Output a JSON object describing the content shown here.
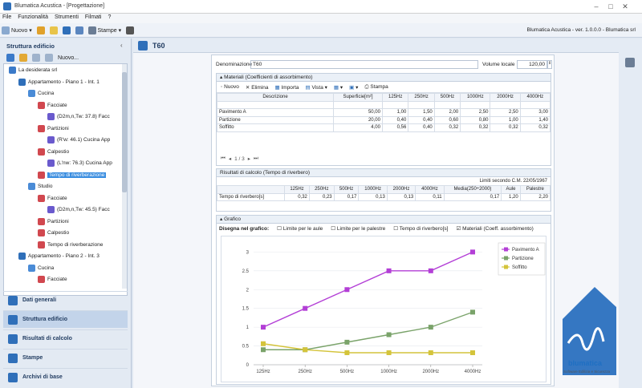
{
  "window": {
    "title": "Blumatica Acustica - [Progettazione]",
    "min": "–",
    "max": "□",
    "close": "✕"
  },
  "menu": [
    "File",
    "Funzionalità",
    "Strumenti",
    "Filmati",
    "?"
  ],
  "toolbar": {
    "new": "Nuovo",
    "print": "Stampe",
    "version": "Blumatica Acustica - ver. 1.0.0.0 - Blumatica srl"
  },
  "left": {
    "title": "Struttura edificio",
    "new_btn": "Nuovo...",
    "tree": [
      {
        "label": "La desiderata srl",
        "depth": 0
      },
      {
        "label": "Appartamento - Piano 1 - Int. 1",
        "depth": 1
      },
      {
        "label": "Cucina",
        "depth": 2
      },
      {
        "label": "Facciate",
        "depth": 3
      },
      {
        "label": "(D2m,n,Tw: 37.8) Facc",
        "depth": 4
      },
      {
        "label": "Partizioni",
        "depth": 3
      },
      {
        "label": "(R'w: 46.1) Cucina App",
        "depth": 4
      },
      {
        "label": "Calpestio",
        "depth": 3
      },
      {
        "label": "(L'nw: 76.3) Cucina App",
        "depth": 4
      },
      {
        "label": "Tempo di riverberazione",
        "depth": 3
      },
      {
        "label": "Studio",
        "depth": 2
      },
      {
        "label": "Facciate",
        "depth": 3
      },
      {
        "label": "(D2m,n,Tw: 45.5) Facc",
        "depth": 4
      },
      {
        "label": "Partizioni",
        "depth": 3
      },
      {
        "label": "Calpestio",
        "depth": 3
      },
      {
        "label": "Tempo di riverberazione",
        "depth": 3
      },
      {
        "label": "Appartamento - Piano 2 - Int. 3",
        "depth": 1
      },
      {
        "label": "Cucina",
        "depth": 2
      },
      {
        "label": "Facciate",
        "depth": 3
      }
    ],
    "nav": [
      "Dati generali",
      "Struttura edificio",
      "Risultati di calcolo",
      "Stampe",
      "Archivi di base"
    ]
  },
  "center": {
    "tab_title": "T60",
    "denominazione_label": "Denominazione",
    "denominazione_value": "T60",
    "volume_label": "Volume locale",
    "volume_value": "120,00",
    "materiali": {
      "title": "Materiali (Coefficienti di assorbimento)",
      "toolbar": [
        "Nuovo",
        "Elimina",
        "Importa",
        "Vista",
        "Stampa"
      ],
      "headers": [
        "Descrizione",
        "Superficie[m²]",
        "125Hz",
        "250Hz",
        "500Hz",
        "1000Hz",
        "2000Hz",
        "4000Hz"
      ],
      "rows": [
        [
          "Pavimento A",
          "50,00",
          "1,00",
          "1,50",
          "2,00",
          "2,50",
          "2,50",
          "3,00"
        ],
        [
          "Partizione",
          "20,00",
          "0,40",
          "0,40",
          "0,60",
          "0,80",
          "1,00",
          "1,40"
        ],
        [
          "Soffitto",
          "4,00",
          "0,56",
          "0,40",
          "0,32",
          "0,32",
          "0,32",
          "0,32"
        ]
      ],
      "pager": "1 / 3"
    },
    "risultati": {
      "title": "Risultati di calcolo (Tempo di riverbero)",
      "limits_label": "Limiti secondo C.M. 22/05/1967",
      "headers": [
        "",
        "125Hz",
        "250Hz",
        "500Hz",
        "1000Hz",
        "2000Hz",
        "4000Hz",
        "Media(250÷2000)",
        "Aule",
        "Palestre"
      ],
      "row": [
        "Tempo di riverbero[s]",
        "0,32",
        "0,23",
        "0,17",
        "0,13",
        "0,13",
        "0,11",
        "0,17",
        "1,20",
        "2,20"
      ]
    },
    "grafico": {
      "title": "Grafico",
      "draw_label": "Disegna nel grafico:",
      "options": [
        {
          "label": "Limite per le aule",
          "checked": false
        },
        {
          "label": "Limite per le palestre",
          "checked": false
        },
        {
          "label": "Tempo di riverbero[s]",
          "checked": false
        },
        {
          "label": "Materiali (Coeff. assorbimento)",
          "checked": true
        }
      ]
    }
  },
  "chart_data": {
    "type": "line",
    "x": [
      "125Hz",
      "250Hz",
      "500Hz",
      "1000Hz",
      "2000Hz",
      "4000Hz"
    ],
    "ylim": [
      0,
      3.2
    ],
    "yticks": [
      "0",
      "0.5",
      "1",
      "1.5",
      "2",
      "2.5",
      "3"
    ],
    "grid": true,
    "legend": "right",
    "series": [
      {
        "name": "Pavimento A",
        "color": "#b33fd6",
        "values": [
          1.0,
          1.5,
          2.0,
          2.5,
          2.5,
          3.0
        ]
      },
      {
        "name": "Partizione",
        "color": "#7aa36a",
        "values": [
          0.4,
          0.4,
          0.6,
          0.8,
          1.0,
          1.4
        ]
      },
      {
        "name": "Soffitto",
        "color": "#d4c43b",
        "values": [
          0.56,
          0.4,
          0.32,
          0.32,
          0.32,
          0.32
        ]
      }
    ]
  },
  "brand": {
    "name": "blumatica",
    "tagline": "Software Edilizia e Sicurezza",
    "color": "#1f6fc2"
  }
}
